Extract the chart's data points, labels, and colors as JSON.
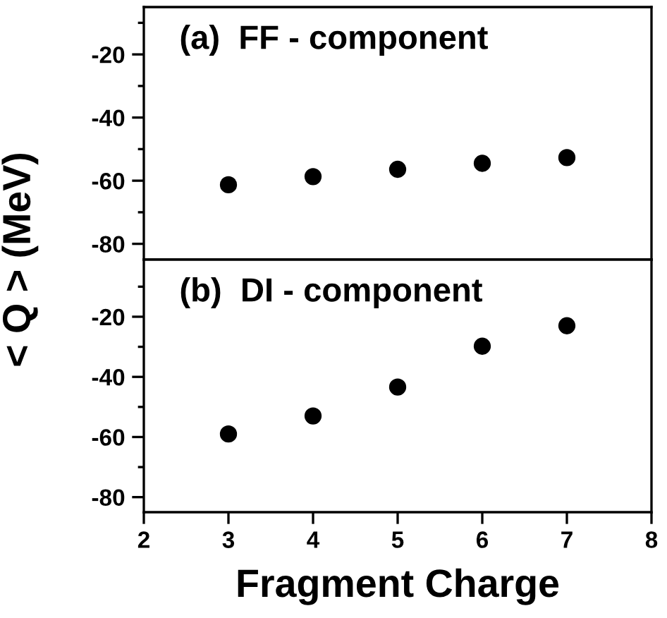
{
  "chart_data": [
    {
      "type": "scatter",
      "x": [
        3,
        4,
        5,
        6,
        7
      ],
      "values": [
        -61.3,
        -58.7,
        -56.4,
        -54.5,
        -52.7
      ],
      "color": "#000000",
      "marker": "circle",
      "xlim": [
        2,
        8
      ],
      "ylim": [
        -85,
        -5
      ],
      "yticks": [
        -80,
        {
          "value": -70,
          "label": null
        },
        -60,
        {
          "value": -50,
          "label": null
        },
        -40,
        {
          "value": -30,
          "label": null
        },
        -20,
        {
          "value": -10,
          "label": null
        }
      ],
      "tick_labels": "y",
      "ylabel": "< Q > (MeV)",
      "annotations": [
        "(a)  FF - component"
      ],
      "grid": false,
      "legend": false
    },
    {
      "type": "scatter",
      "x": [
        3,
        4,
        5,
        6,
        7
      ],
      "values": [
        -59,
        -53,
        -43.4,
        -29.8,
        -23
      ],
      "color": "#000000",
      "marker": "circle",
      "xlim": [
        2,
        8
      ],
      "xticks": [
        2,
        3,
        4,
        5,
        6,
        7,
        8
      ],
      "ylim": [
        -85,
        -1
      ],
      "yticks": [
        -80,
        {
          "value": -70,
          "label": null
        },
        -60,
        {
          "value": -50,
          "label": null
        },
        -40,
        {
          "value": -30,
          "label": null
        },
        -20,
        {
          "value": -10,
          "label": null
        }
      ],
      "xlabel": "Fragment Charge",
      "annotations": [
        "(b)  DI - component"
      ],
      "grid": false,
      "legend": false
    }
  ]
}
